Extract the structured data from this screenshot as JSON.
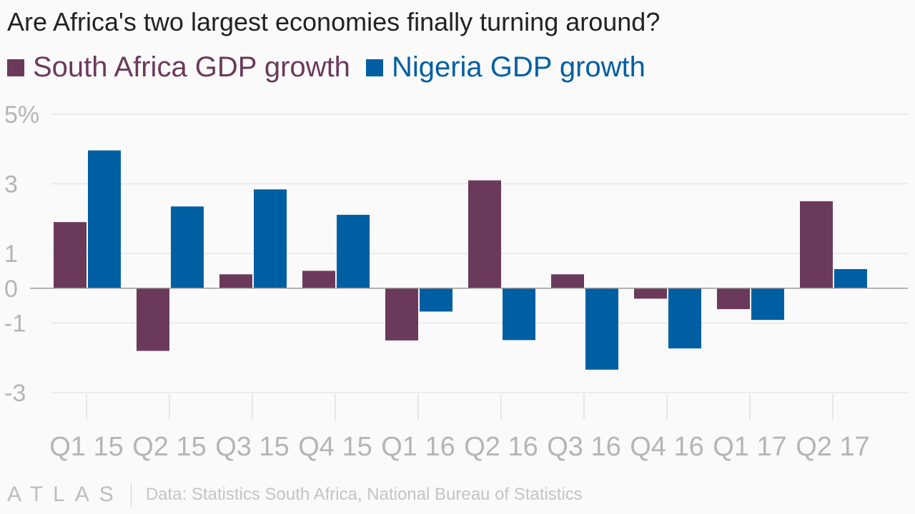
{
  "title": "Are Africa's two largest economies finally turning around?",
  "legend": [
    {
      "label": "South Africa GDP growth",
      "color": "#6b3a5b"
    },
    {
      "label": "Nigeria GDP growth",
      "color": "#005fa3"
    }
  ],
  "footer": {
    "logo": "ATLAS",
    "source": "Data: Statistics South Africa, National Bureau of Statistics"
  },
  "chart_data": {
    "type": "bar",
    "categories": [
      "Q1 15",
      "Q2 15",
      "Q3 15",
      "Q4 15",
      "Q1 16",
      "Q2 16",
      "Q3 16",
      "Q4 16",
      "Q1 17",
      "Q2 17"
    ],
    "series": [
      {
        "name": "South Africa GDP growth",
        "color": "#6b3a5b",
        "values": [
          1.9,
          -1.8,
          0.4,
          0.5,
          -1.5,
          3.1,
          0.4,
          -0.3,
          -0.6,
          2.5
        ]
      },
      {
        "name": "Nigeria GDP growth",
        "color": "#005fa3",
        "values": [
          3.96,
          2.35,
          2.84,
          2.11,
          -0.67,
          -1.49,
          -2.34,
          -1.73,
          -0.91,
          0.55
        ]
      }
    ],
    "ylim": [
      -3,
      5
    ],
    "yticks": [
      5,
      3,
      1,
      0,
      -1,
      -3
    ],
    "ytick_labels": [
      "5%",
      "3",
      "1",
      "0",
      "-1",
      "-3"
    ],
    "grid": true
  }
}
